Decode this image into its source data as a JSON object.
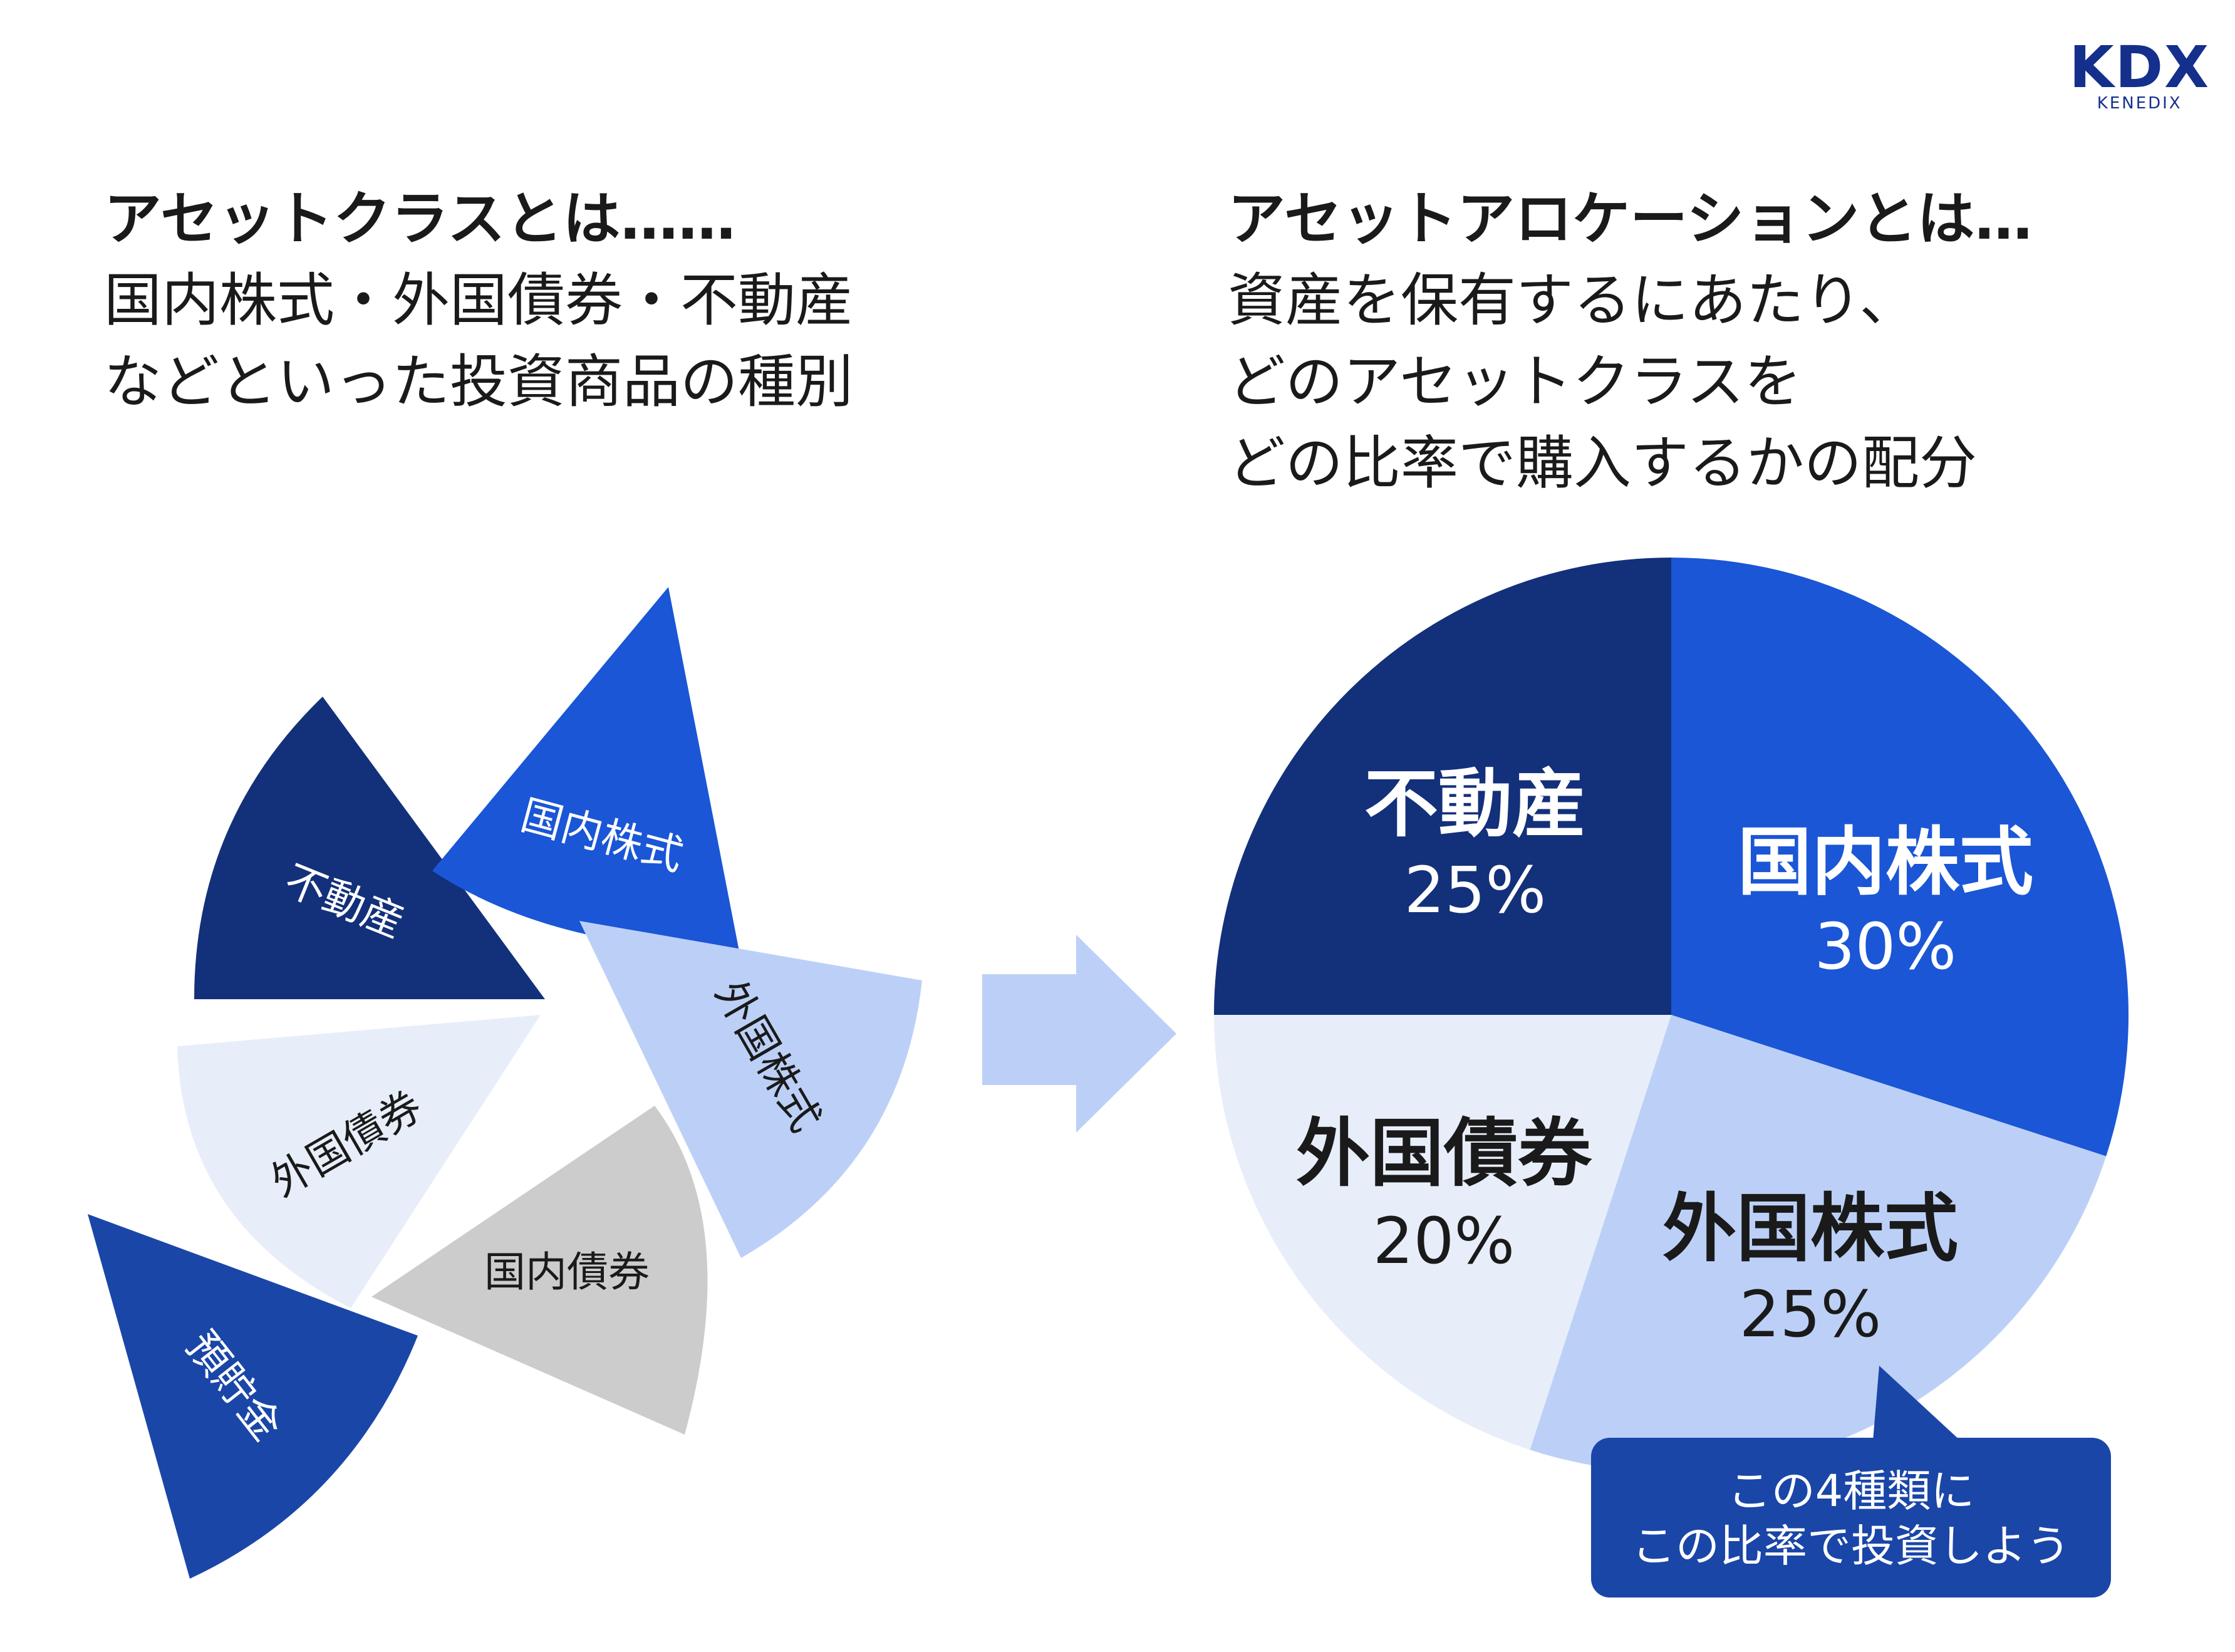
{
  "logo": {
    "mark": "KDX",
    "sub": "KENEDIX"
  },
  "left_panel": {
    "heading": "アセットクラスとは……",
    "lines": [
      "国内株式・外国債券・不動産",
      "などといった投資商品の種別"
    ]
  },
  "right_panel": {
    "heading": "アセットアロケーションとは…",
    "lines": [
      "資産を保有するにあたり、",
      "どのアセットクラスを",
      "どの比率で購入するかの配分"
    ]
  },
  "asset_classes": [
    {
      "name": "不動産",
      "color": "#13307a"
    },
    {
      "name": "国内株式",
      "color": "#1a56d6"
    },
    {
      "name": "外国株式",
      "color": "#bcd0f7"
    },
    {
      "name": "外国債券",
      "color": "#e8eef9"
    },
    {
      "name": "国内債券",
      "color": "#cccccc"
    },
    {
      "name": "預貯金",
      "color": "#1a46a8"
    }
  ],
  "arrow": {
    "icon": "arrow-right-icon",
    "color": "#bcd0f7"
  },
  "chart_data": {
    "type": "pie",
    "categories": [
      "国内株式",
      "外国株式",
      "外国債券",
      "不動産"
    ],
    "values": [
      30,
      25,
      20,
      25
    ],
    "value_labels": [
      "30%",
      "25%",
      "20%",
      "25%"
    ],
    "colors": [
      "#1a56d6",
      "#bcd0f7",
      "#e8eef9",
      "#13307a"
    ]
  },
  "callout": {
    "lines": [
      "この4種類に",
      "この比率で投資しよう"
    ],
    "color": "#1a46a8"
  }
}
